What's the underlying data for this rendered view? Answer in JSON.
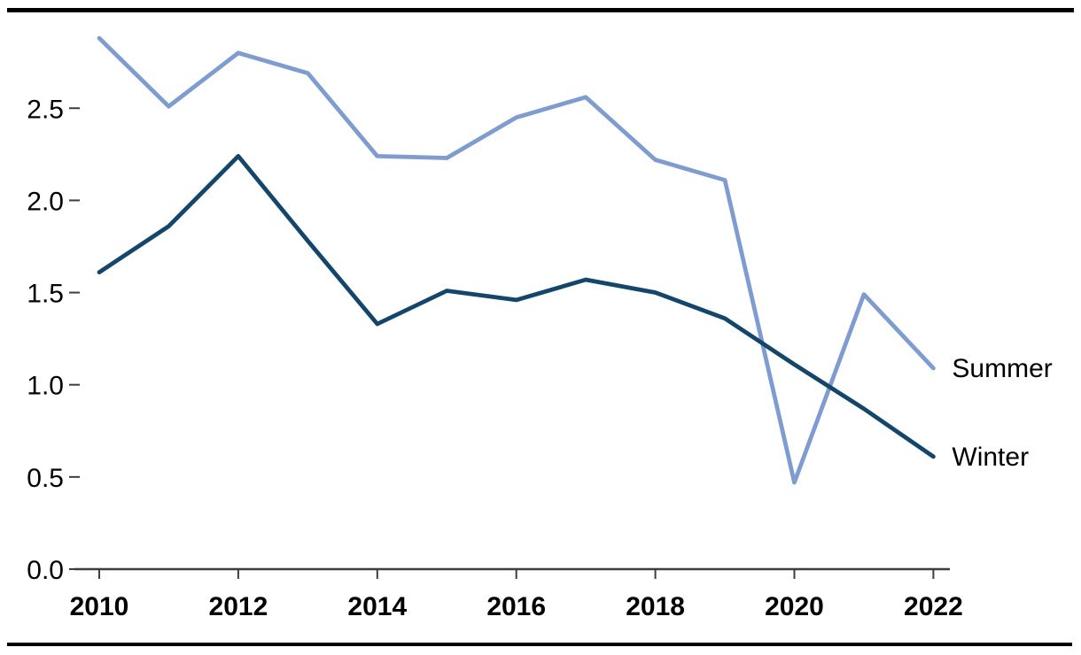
{
  "chart_data": {
    "type": "line",
    "x": [
      2010,
      2011,
      2012,
      2013,
      2014,
      2015,
      2016,
      2017,
      2018,
      2019,
      2020,
      2021,
      2022
    ],
    "series": [
      {
        "name": "Summer",
        "color": "#7e9cd0",
        "values": [
          2.88,
          2.51,
          2.8,
          2.69,
          2.24,
          2.23,
          2.45,
          2.56,
          2.22,
          2.11,
          0.47,
          1.49,
          1.09
        ]
      },
      {
        "name": "Winter",
        "color": "#14466b",
        "values": [
          1.61,
          1.86,
          2.24,
          1.78,
          1.33,
          1.51,
          1.46,
          1.57,
          1.5,
          1.36,
          1.11,
          0.87,
          0.61
        ]
      }
    ],
    "xticks": [
      2010,
      2012,
      2014,
      2016,
      2018,
      2020,
      2022
    ],
    "xtick_labels": [
      "2010",
      "2012",
      "2014",
      "2016",
      "2018",
      "2020",
      "2022"
    ],
    "yticks": [
      0.0,
      0.5,
      1.0,
      1.5,
      2.0,
      2.5
    ],
    "ytick_labels": [
      "0.0",
      "0.5",
      "1.0",
      "1.5",
      "2.0",
      "2.5"
    ],
    "xlim": [
      2010,
      2022
    ],
    "ylim": [
      0,
      2.95
    ],
    "grid": false,
    "legend_position": "labels-at-line-ends",
    "axis_color": "#3d3d3d"
  }
}
